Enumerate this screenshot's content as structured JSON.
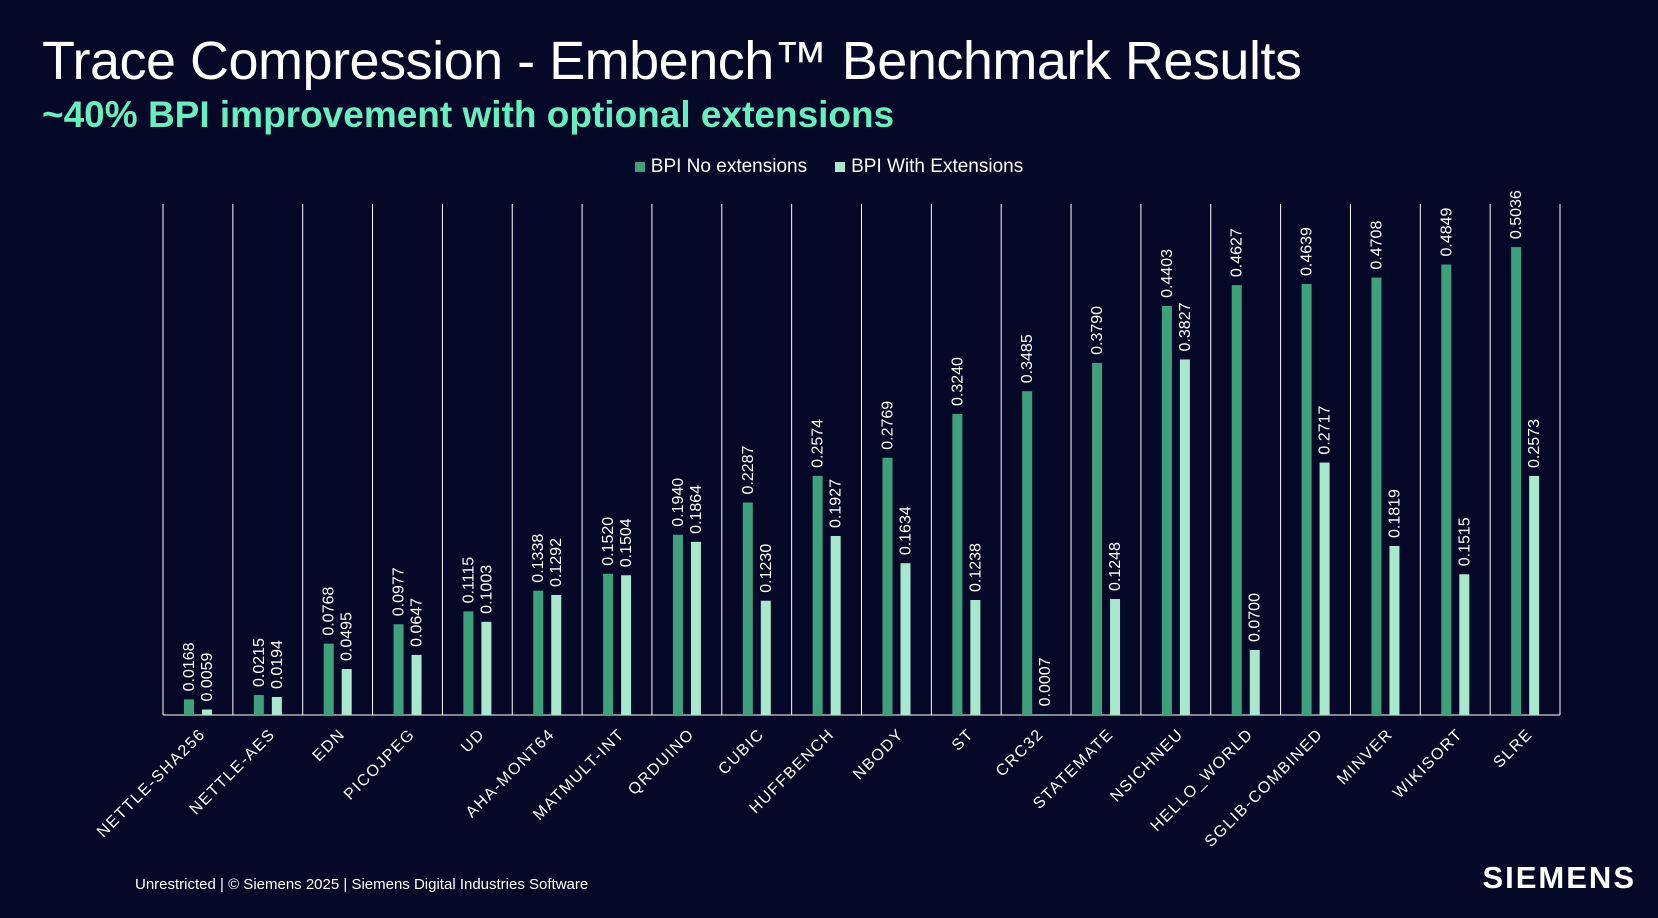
{
  "slide": {
    "title": "Trace Compression - Embench™ Benchmark Results",
    "subtitle": "~40% BPI improvement with optional extensions",
    "footer": "Unrestricted | © Siemens 2025 | Siemens Digital Industries Software",
    "brand": "SIEMENS"
  },
  "colors": {
    "background": "#050826",
    "subtitle": "#66f0bf",
    "series_no_ext": "#3fa07c",
    "series_with_ext": "#a8e8cd",
    "grid": "#ffffff"
  },
  "chart_data": {
    "type": "bar",
    "title": "",
    "xlabel": "",
    "ylabel": "",
    "ylim": [
      0,
      0.55
    ],
    "grid": "vertical separators",
    "legend_position": "top-center",
    "categories": [
      "NETTLE-SHA256",
      "NETTLE-AES",
      "EDN",
      "PICOJPEG",
      "UD",
      "AHA-MONT64",
      "MATMULT-INT",
      "QRDUINO",
      "CUBIC",
      "HUFFBENCH",
      "NBODY",
      "ST",
      "CRC32",
      "STATEMATE",
      "NSICHNEU",
      "HELLO_WORLD",
      "SGLIB-COMBINED",
      "MINVER",
      "WIKISORT",
      "SLRE"
    ],
    "series": [
      {
        "name": "BPI No extensions",
        "values": [
          0.0168,
          0.0215,
          0.0768,
          0.0977,
          0.1115,
          0.1338,
          0.152,
          0.194,
          0.2287,
          0.2574,
          0.2769,
          0.324,
          0.3485,
          0.379,
          0.4403,
          0.4627,
          0.4639,
          0.4708,
          0.4849,
          0.5036
        ],
        "labels": [
          "0.0168",
          "0.0215",
          "0.0768",
          "0.0977",
          "0.1115",
          "0.1338",
          "0.1520",
          "0.1940",
          "0.2287",
          "0.2574",
          "0.2769",
          "0.3240",
          "0.3485",
          "0.3790",
          "0.4403",
          "0.4627",
          "0.4639",
          "0.4708",
          "0.4849",
          "0.5036"
        ]
      },
      {
        "name": "BPI With Extensions",
        "values": [
          0.0059,
          0.0194,
          0.0495,
          0.0647,
          0.1003,
          0.1292,
          0.1504,
          0.1864,
          0.123,
          0.1927,
          0.1634,
          0.1238,
          0.0007,
          0.1248,
          0.3827,
          0.07,
          0.2717,
          0.1819,
          0.1515,
          0.2573
        ],
        "labels": [
          "0.0059",
          "0.0194",
          "0.0495",
          "0.0647",
          "0.1003",
          "0.1292",
          "0.1504",
          "0.1864",
          "0.1230",
          "0.1927",
          "0.1634",
          "0.1238",
          "0.0007",
          "0.1248",
          "0.3827",
          "0.0700",
          "0.2717",
          "0.1819",
          "0.1515",
          "0.2573"
        ]
      }
    ]
  }
}
